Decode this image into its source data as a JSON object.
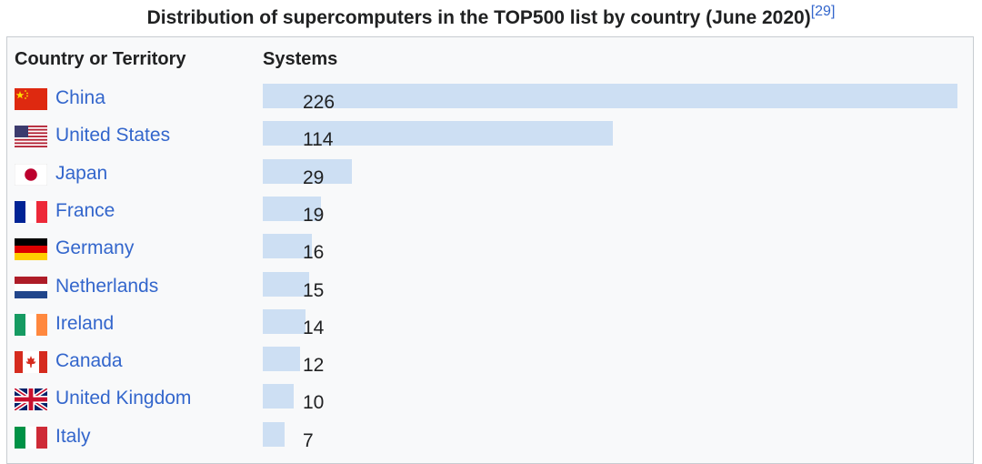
{
  "caption": {
    "title": "Distribution of supercomputers in the TOP500 list by country (June 2020)",
    "ref": "[29]"
  },
  "table": {
    "col_country": "Country or Territory",
    "col_systems": "Systems"
  },
  "colors": {
    "bar": "#cddff3",
    "link": "#3366cc",
    "panel": "#f8f9fa"
  },
  "chart_data": {
    "type": "bar",
    "orientation": "horizontal",
    "title": "Distribution of supercomputers in the TOP500 list by country (June 2020)",
    "categories": [
      "China",
      "United States",
      "Japan",
      "France",
      "Germany",
      "Netherlands",
      "Ireland",
      "Canada",
      "United Kingdom",
      "Italy"
    ],
    "values": [
      226,
      114,
      29,
      19,
      16,
      15,
      14,
      12,
      10,
      7
    ],
    "flags": [
      "china-flag-icon",
      "us-flag-icon",
      "japan-flag-icon",
      "france-flag-icon",
      "germany-flag-icon",
      "netherlands-flag-icon",
      "ireland-flag-icon",
      "canada-flag-icon",
      "uk-flag-icon",
      "italy-flag-icon"
    ],
    "xlabel": "Systems",
    "ylabel": "Country or Territory",
    "grid": false,
    "legend": "none"
  }
}
